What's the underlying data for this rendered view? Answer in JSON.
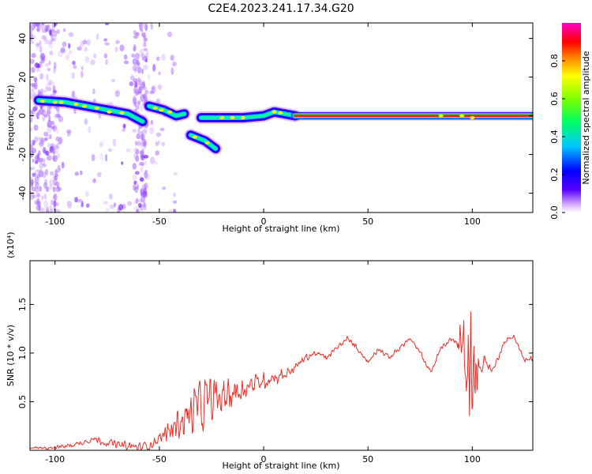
{
  "title": "C2E4.2023.241.17.34.G20",
  "chart_data": [
    {
      "type": "heatmap",
      "xlabel": "Height of straight line (km)",
      "ylabel": "Frequency (Hz)",
      "xlim": [
        -112,
        129
      ],
      "ylim": [
        -50,
        48
      ],
      "x_ticks": [
        -100,
        -50,
        0,
        50,
        100
      ],
      "y_ticks": [
        -40,
        -20,
        0,
        20,
        40
      ],
      "colorbar": {
        "label": "Normalized spectral amplitude",
        "range": [
          0,
          1
        ],
        "ticks": [
          0.0,
          0.2,
          0.4,
          0.6,
          0.8
        ],
        "colors": [
          "#ffffff",
          "#5a00ff",
          "#0000ff",
          "#00c8ff",
          "#00ff00",
          "#ffff00",
          "#ff7f00",
          "#ff0000",
          "#ff00c8"
        ]
      },
      "ridge_segments": [
        {
          "x": [
            -108,
            -95,
            -85,
            -75,
            -65,
            -58
          ],
          "y": [
            8,
            7,
            5,
            3,
            1,
            -3
          ]
        },
        {
          "x": [
            -55,
            -48,
            -42,
            -38
          ],
          "y": [
            5,
            3,
            0,
            1
          ]
        },
        {
          "x": [
            -35,
            -28,
            -23
          ],
          "y": [
            -10,
            -13,
            -17
          ]
        },
        {
          "x": [
            -30,
            -20,
            -10,
            0,
            5,
            10,
            15
          ],
          "y": [
            -1,
            -1,
            -1,
            0,
            2,
            1,
            0
          ]
        },
        {
          "x": [
            15,
            50,
            94,
            100,
            129
          ],
          "y": [
            0,
            0,
            0,
            0,
            0
          ]
        }
      ]
    },
    {
      "type": "line",
      "xlabel": "Height of straight line (km)",
      "ylabel": "SNR (10 * v/v)",
      "y_multiplier": "(x10⁴)",
      "xlim": [
        -112,
        129
      ],
      "ylim": [
        0,
        1.95
      ],
      "x_ticks": [
        -100,
        -50,
        0,
        50,
        100
      ],
      "y_ticks": [
        0.5,
        1.0,
        1.5
      ],
      "line_color": "#e8302a",
      "envelope": {
        "x": [
          -112,
          -100,
          -90,
          -82,
          -75,
          -68,
          -60,
          -55,
          -50,
          -45,
          -40,
          -35,
          -30,
          -25,
          -20,
          -15,
          -10,
          -5,
          0,
          5,
          10,
          15,
          20,
          25,
          30,
          35,
          40,
          45,
          50,
          55,
          60,
          65,
          70,
          75,
          80,
          85,
          90,
          95,
          97,
          100,
          103,
          106,
          110,
          115,
          120,
          125,
          129
        ],
        "y": [
          0.02,
          0.03,
          0.06,
          0.12,
          0.08,
          0.05,
          0.03,
          0.05,
          0.12,
          0.2,
          0.3,
          0.38,
          0.45,
          0.5,
          0.55,
          0.6,
          0.63,
          0.68,
          0.72,
          0.75,
          0.78,
          0.85,
          0.95,
          1.0,
          0.95,
          1.05,
          1.15,
          1.05,
          0.9,
          1.05,
          0.95,
          1.05,
          1.15,
          1.0,
          0.8,
          1.05,
          1.15,
          1.05,
          0.85,
          0.95,
          0.8,
          0.92,
          0.82,
          1.1,
          1.18,
          0.92,
          0.95
        ]
      },
      "noise_amplitude": {
        "x": [
          -112,
          -80,
          -50,
          -40,
          -30,
          -20,
          -10,
          10,
          20,
          30,
          90,
          94,
          97,
          101,
          104,
          110,
          129
        ],
        "y": [
          0.01,
          0.04,
          0.06,
          0.2,
          0.35,
          0.25,
          0.12,
          0.08,
          0.04,
          0.03,
          0.03,
          0.25,
          0.8,
          0.5,
          0.1,
          0.03,
          0.03
        ]
      }
    }
  ]
}
